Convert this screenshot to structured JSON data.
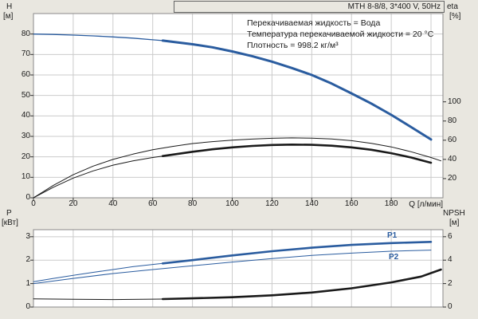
{
  "title_box": "MTH 8-8/8, 3*400 V, 50Hz",
  "annotations": {
    "line1": "Перекачиваемая жидкость = Вода",
    "line2": "Температура перекачиваемой жидкости = 20 °C",
    "line3": "Плотность = 998.2 кг/м³"
  },
  "axis_headers": {
    "top_left_name": "H",
    "top_left_unit": "[м]",
    "top_right_name": "eta",
    "top_right_unit": "[%]",
    "bottom_left_name": "P",
    "bottom_left_unit": "[кВт]",
    "bottom_right_name": "NPSH",
    "bottom_right_unit": "[м]",
    "x_label": "Q [л/мин]"
  },
  "curve_labels": {
    "p1": "P1",
    "p2": "P2"
  },
  "colors": {
    "background": "#e9e7e0",
    "plot_bg": "#ffffff",
    "grid": "#cbcbcb",
    "plot_border": "#8a8a8a",
    "curve_blue": "#2a5c9f",
    "curve_black": "#1a1a1a",
    "text": "#1a1a1a"
  },
  "chart_data": [
    {
      "type": "line",
      "panel": "head-and-efficiency",
      "xlabel": "Q [л/мин]",
      "ylabel_left": "H [м]",
      "ylabel_right": "eta [%]",
      "xlim": [
        0,
        206
      ],
      "x_grid_step": 20,
      "x_tick_values": [
        0,
        20,
        40,
        60,
        80,
        100,
        120,
        140,
        160,
        180
      ],
      "x_tick_labels": [
        "0",
        "20",
        "40",
        "60",
        "80",
        "100",
        "120",
        "140",
        "160",
        "180"
      ],
      "ylim_left": [
        0,
        90
      ],
      "left_ticks": [
        0,
        10,
        20,
        30,
        40,
        50,
        60,
        70,
        80
      ],
      "ylim_right": [
        0,
        192
      ],
      "right_ticks": [
        20,
        40,
        60,
        80,
        100
      ],
      "series": [
        {
          "name": "H-curve",
          "axis": "left",
          "color": "curve_blue",
          "width": 1.3,
          "points": [
            [
              0,
              80
            ],
            [
              10,
              79.8
            ],
            [
              20,
              79.5
            ],
            [
              30,
              79.1
            ],
            [
              40,
              78.6
            ],
            [
              50,
              78.0
            ],
            [
              60,
              77.2
            ],
            [
              65,
              76.8
            ]
          ]
        },
        {
          "name": "H-curve-duty-range",
          "axis": "left",
          "color": "curve_blue",
          "width": 3,
          "points": [
            [
              65,
              76.8
            ],
            [
              80,
              75.0
            ],
            [
              90,
              73.5
            ],
            [
              100,
              71.5
            ],
            [
              110,
              69.2
            ],
            [
              120,
              66.5
            ],
            [
              130,
              63.4
            ],
            [
              140,
              60.0
            ],
            [
              150,
              55.8
            ],
            [
              160,
              51.0
            ],
            [
              170,
              46.0
            ],
            [
              180,
              40.5
            ],
            [
              190,
              34.5
            ],
            [
              200,
              28.5
            ]
          ]
        },
        {
          "name": "eta1",
          "axis": "right",
          "color": "curve_black",
          "width": 1,
          "points": [
            [
              0,
              0
            ],
            [
              10,
              13
            ],
            [
              20,
              24
            ],
            [
              30,
              33
            ],
            [
              40,
              40
            ],
            [
              50,
              45.5
            ],
            [
              60,
              50
            ],
            [
              70,
              53.5
            ],
            [
              80,
              56.5
            ],
            [
              90,
              58.5
            ],
            [
              100,
              60
            ],
            [
              110,
              61.2
            ],
            [
              120,
              62
            ],
            [
              130,
              62.4
            ],
            [
              140,
              62.2
            ],
            [
              150,
              61.3
            ],
            [
              160,
              59.5
            ],
            [
              170,
              56.8
            ],
            [
              180,
              53
            ],
            [
              190,
              48
            ],
            [
              200,
              42
            ],
            [
              205,
              38.5
            ]
          ]
        },
        {
          "name": "eta2",
          "axis": "right",
          "color": "curve_black",
          "width": 1,
          "points": [
            [
              0,
              0
            ],
            [
              10,
              11
            ],
            [
              20,
              20.5
            ],
            [
              30,
              28
            ],
            [
              40,
              34
            ],
            [
              50,
              38.5
            ],
            [
              60,
              42
            ],
            [
              65,
              43.5
            ]
          ]
        },
        {
          "name": "eta2-duty-range",
          "axis": "right",
          "color": "curve_black",
          "width": 2.6,
          "points": [
            [
              65,
              43.5
            ],
            [
              80,
              48
            ],
            [
              90,
              50.5
            ],
            [
              100,
              52.5
            ],
            [
              110,
              54
            ],
            [
              120,
              55
            ],
            [
              130,
              55.4
            ],
            [
              140,
              55.2
            ],
            [
              150,
              54.3
            ],
            [
              160,
              52.5
            ],
            [
              170,
              50
            ],
            [
              180,
              46.5
            ],
            [
              190,
              42
            ],
            [
              200,
              36.5
            ]
          ]
        }
      ]
    },
    {
      "type": "line",
      "panel": "power-and-npsh",
      "ylabel_left": "P [кВт]",
      "ylabel_right": "NPSH [м]",
      "xlim": [
        0,
        206
      ],
      "x_grid_step": 20,
      "x_tick_values": [],
      "x_tick_labels": [],
      "ylim_left": [
        0,
        3.3
      ],
      "left_ticks": [
        0,
        1,
        2,
        3
      ],
      "ylim_right": [
        0,
        6.6
      ],
      "right_ticks": [
        0,
        2,
        4,
        6
      ],
      "series": [
        {
          "name": "P1",
          "axis": "left",
          "color": "curve_blue",
          "width": 1,
          "points": [
            [
              0,
              1.08
            ],
            [
              10,
              1.22
            ],
            [
              20,
              1.35
            ],
            [
              30,
              1.48
            ],
            [
              40,
              1.6
            ],
            [
              50,
              1.72
            ],
            [
              65,
              1.86
            ]
          ]
        },
        {
          "name": "P1-duty-range",
          "axis": "left",
          "color": "curve_blue",
          "width": 2.6,
          "points": [
            [
              65,
              1.86
            ],
            [
              80,
              2.0
            ],
            [
              100,
              2.2
            ],
            [
              120,
              2.38
            ],
            [
              140,
              2.53
            ],
            [
              160,
              2.65
            ],
            [
              180,
              2.73
            ],
            [
              200,
              2.78
            ]
          ]
        },
        {
          "name": "P2",
          "axis": "left",
          "color": "curve_blue",
          "width": 1,
          "points": [
            [
              0,
              1.0
            ],
            [
              20,
              1.22
            ],
            [
              40,
              1.43
            ],
            [
              60,
              1.6
            ],
            [
              80,
              1.76
            ],
            [
              100,
              1.92
            ],
            [
              120,
              2.07
            ],
            [
              140,
              2.2
            ],
            [
              160,
              2.3
            ],
            [
              180,
              2.38
            ],
            [
              200,
              2.43
            ]
          ]
        },
        {
          "name": "NPSH",
          "axis": "right",
          "color": "curve_black",
          "width": 1,
          "points": [
            [
              0,
              0.7
            ],
            [
              20,
              0.66
            ],
            [
              40,
              0.64
            ],
            [
              65,
              0.68
            ]
          ]
        },
        {
          "name": "NPSH-duty-range",
          "axis": "right",
          "color": "curve_black",
          "width": 2.6,
          "points": [
            [
              65,
              0.68
            ],
            [
              80,
              0.74
            ],
            [
              100,
              0.84
            ],
            [
              120,
              1.0
            ],
            [
              140,
              1.24
            ],
            [
              160,
              1.6
            ],
            [
              180,
              2.1
            ],
            [
              195,
              2.6
            ],
            [
              205,
              3.2
            ]
          ]
        }
      ]
    }
  ]
}
